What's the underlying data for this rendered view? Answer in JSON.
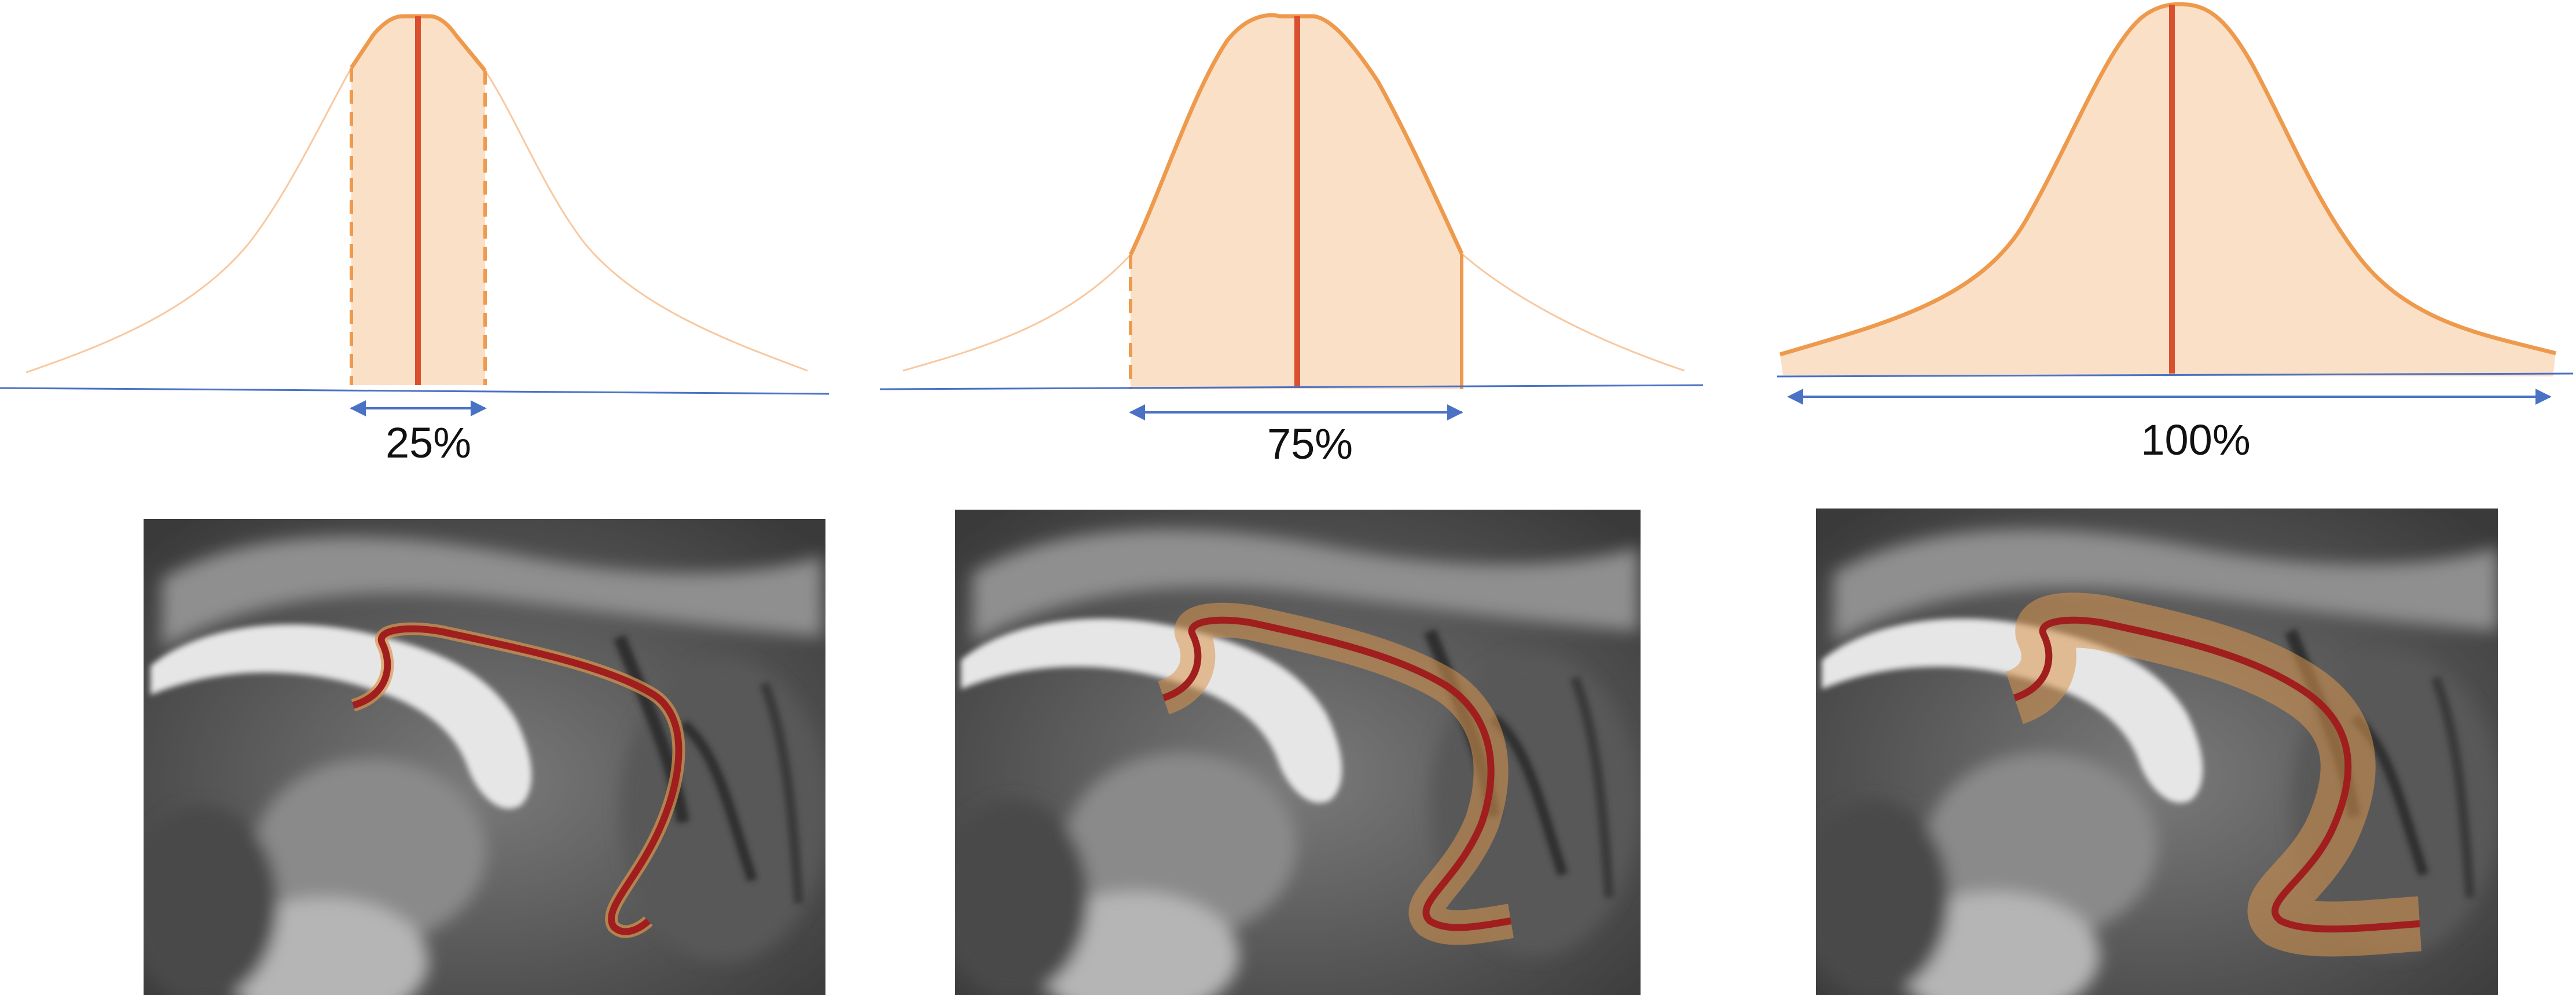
{
  "panels": [
    {
      "id": "p25",
      "label": "25%",
      "coverage": 0.25
    },
    {
      "id": "p75",
      "label": "75%",
      "coverage": 0.75
    },
    {
      "id": "p100",
      "label": "100%",
      "coverage": 1.0
    }
  ],
  "colors": {
    "curve": "#F4A460",
    "curve_stroke": "#EE9A4D",
    "fill": "#FBE0C8",
    "median": "#D9502F",
    "axis": "#4A72C4",
    "tract_core": "#A01E1E",
    "tract_fibers": "#D9954E"
  },
  "icons": {
    "range_arrow": "double-headed-arrow-icon"
  }
}
